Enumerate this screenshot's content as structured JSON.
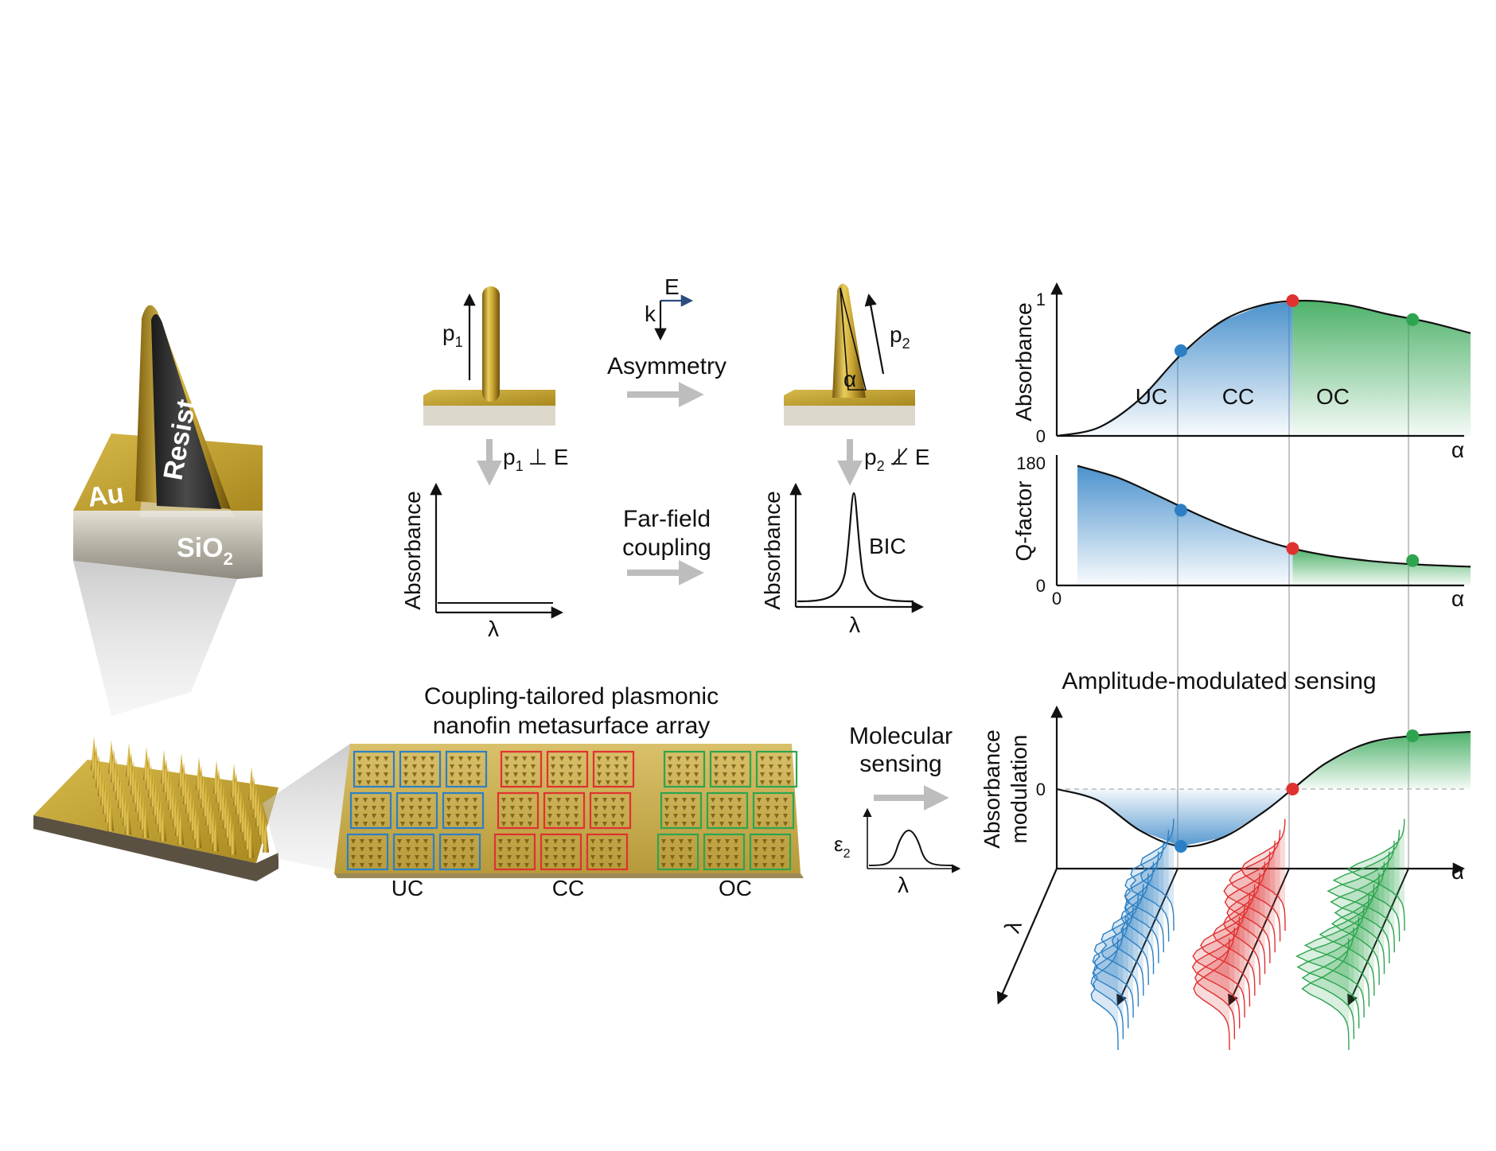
{
  "colors": {
    "uc": "#2c7fc4",
    "cc": "#e03131",
    "oc": "#2ea44f",
    "gold": "#c9a532",
    "gold_dark": "#8a6d12",
    "arrow_gray": "#bdbdbd"
  },
  "nanofin": {
    "au_label": "Au",
    "resist_label": "Resist",
    "sio2_label": "SiO",
    "sio2_sub": "2"
  },
  "schematic": {
    "left_pillar_dipole": "p",
    "left_pillar_dipole_sub": "1",
    "right_pillar_dipole": "p",
    "right_pillar_dipole_sub": "2",
    "angle_label": "α",
    "axis_e": "E",
    "axis_k": "k",
    "asymmetry_label": "Asymmetry",
    "left_condition": "p",
    "left_condition_sub": "1",
    "left_condition_rest": "⊥ E",
    "right_condition": "p",
    "right_condition_sub": "2",
    "right_condition_rest": "⊥̸ E",
    "farfield_line1": "Far-field",
    "farfield_line2": "coupling",
    "absorbance_ylabel": "Absorbance",
    "lambda_xlabel": "λ",
    "bic_label": "BIC"
  },
  "array": {
    "title_line1": "Coupling-tailored plasmonic",
    "title_line2": "nanofin metasurface array",
    "groups": [
      "UC",
      "CC",
      "OC"
    ]
  },
  "sensing": {
    "molecular_line1": "Molecular",
    "molecular_line2": "sensing",
    "eps_symbol": "ε",
    "eps_sub": "2",
    "eps_xlabel": "λ"
  },
  "chart_data": [
    {
      "type": "area",
      "ylabel": "Absorbance",
      "xlabel": "α",
      "ylim": [
        0,
        1
      ],
      "yticks": [
        "0",
        "1"
      ],
      "x": [
        0,
        0.1,
        0.2,
        0.3,
        0.4,
        0.5,
        0.6,
        0.7,
        0.8,
        0.9,
        1.0
      ],
      "values": [
        0.0,
        0.06,
        0.27,
        0.6,
        0.85,
        0.97,
        1.0,
        0.97,
        0.9,
        0.84,
        0.76
      ],
      "regions": [
        "UC",
        "CC",
        "OC"
      ],
      "markers": [
        {
          "x": 0.3,
          "y": 0.63,
          "region": "UC"
        },
        {
          "x": 0.57,
          "y": 1.0,
          "region": "CC"
        },
        {
          "x": 0.86,
          "y": 0.86,
          "region": "OC"
        }
      ]
    },
    {
      "type": "area",
      "ylabel": "Q-factor",
      "xlabel": "α",
      "ylim": [
        0,
        180
      ],
      "yticks": [
        "0",
        "180"
      ],
      "xticks": [
        "0"
      ],
      "x": [
        0.05,
        0.15,
        0.25,
        0.35,
        0.45,
        0.55,
        0.65,
        0.75,
        0.85,
        0.95,
        1.0
      ],
      "values": [
        178,
        160,
        132,
        103,
        78,
        58,
        45,
        37,
        32,
        29,
        28
      ],
      "markers": [
        {
          "x": 0.3,
          "y": 112,
          "region": "UC"
        },
        {
          "x": 0.57,
          "y": 55,
          "region": "CC"
        },
        {
          "x": 0.86,
          "y": 37,
          "region": "OC"
        }
      ]
    },
    {
      "type": "area",
      "title": "Amplitude-modulated sensing",
      "ylabel_line1": "Absorbance",
      "ylabel_line2": "modulation",
      "xlabel": "α",
      "zlabel": "λ",
      "yticks": [
        "0"
      ],
      "x": [
        0,
        0.1,
        0.2,
        0.3,
        0.4,
        0.5,
        0.57,
        0.65,
        0.75,
        0.86,
        1.0
      ],
      "values": [
        0,
        -0.2,
        -0.72,
        -1.0,
        -0.85,
        -0.4,
        0,
        0.45,
        0.8,
        0.93,
        1.0
      ],
      "markers": [
        {
          "x": 0.3,
          "y": -1.0,
          "region": "UC"
        },
        {
          "x": 0.57,
          "y": 0,
          "region": "CC"
        },
        {
          "x": 0.86,
          "y": 0.93,
          "region": "OC"
        }
      ]
    }
  ]
}
